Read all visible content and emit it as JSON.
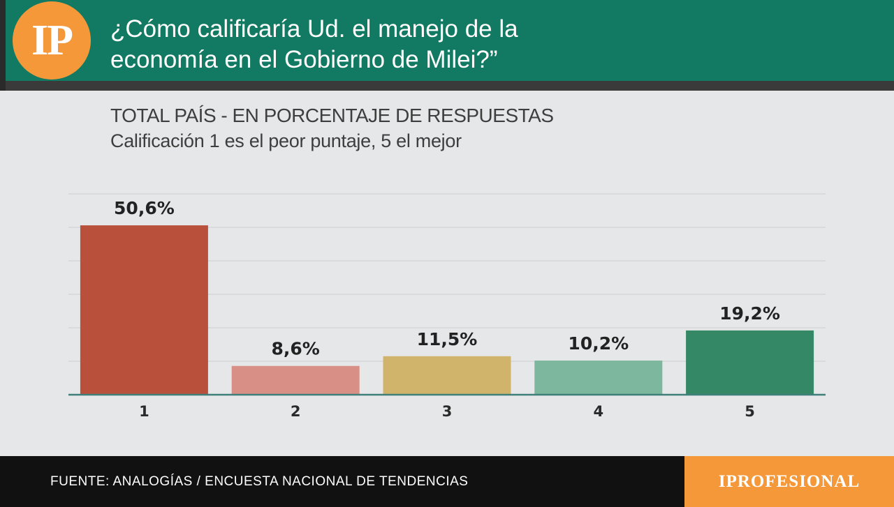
{
  "header": {
    "logo_text": "IP",
    "title": "¿Cómo calificaría Ud. el manejo de la\neconomía en el Gobierno de Milei?”"
  },
  "subtitle": {
    "line1": "TOTAL PAÍS - EN PORCENTAJE DE RESPUESTAS",
    "line2": "Calificación 1 es el peor puntaje, 5 el mejor"
  },
  "colors": {
    "header_band": "#127a62",
    "logo": "#f4983a",
    "bars": [
      "#b8503c",
      "#d78f86",
      "#d1b46c",
      "#7db79e",
      "#358865"
    ],
    "baseline": "#3f7f7a"
  },
  "chart_data": {
    "type": "bar",
    "categories": [
      "1",
      "2",
      "3",
      "4",
      "5"
    ],
    "values": [
      50.6,
      8.6,
      11.5,
      10.2,
      19.2
    ],
    "value_labels": [
      "50,6%",
      "8,6%",
      "11,5%",
      "10,2%",
      "19,2%"
    ],
    "title": "",
    "xlabel": "",
    "ylabel": "",
    "ylim": [
      0,
      60
    ],
    "grid": true,
    "legend": "none"
  },
  "footer": {
    "source": "FUENTE: ANALOGÍAS / ENCUESTA NACIONAL DE TENDENCIAS",
    "brand": "IPROFESIONAL"
  }
}
